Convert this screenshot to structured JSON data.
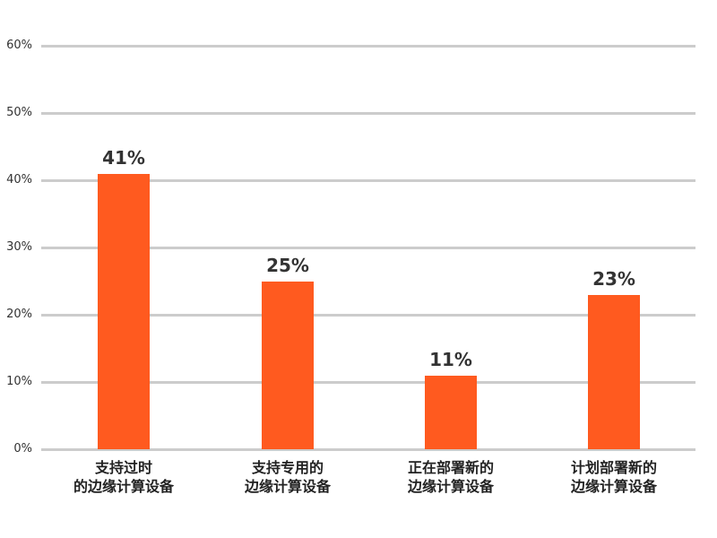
{
  "chart_data": {
    "type": "bar",
    "title": "",
    "xlabel": "",
    "ylabel": "",
    "categories": [
      "支持过时的边缘计算设备",
      "支持专用的边缘计算设备",
      "正在部署新的边缘计算设备",
      "计划部署新的边缘计算设备"
    ],
    "category_lines": [
      [
        "支持过时",
        "的边缘计算设备"
      ],
      [
        "支持专用的",
        "边缘计算设备"
      ],
      [
        "正在部署新的",
        "边缘计算设备"
      ],
      [
        "计划部署新的",
        "边缘计算设备"
      ]
    ],
    "values": [
      41,
      25,
      11,
      23
    ],
    "value_labels": [
      "41%",
      "25%",
      "11%",
      "23%"
    ],
    "ylim": [
      0,
      60
    ],
    "yticks": [
      0,
      10,
      20,
      30,
      40,
      50,
      60
    ],
    "ytick_labels": [
      "0%",
      "10%",
      "20%",
      "30%",
      "40%",
      "50%",
      "60%"
    ],
    "grid": true,
    "legend": null,
    "colors": {
      "bar": "#ff5a1f",
      "grid": "#cccccc",
      "text": "#333333"
    }
  }
}
